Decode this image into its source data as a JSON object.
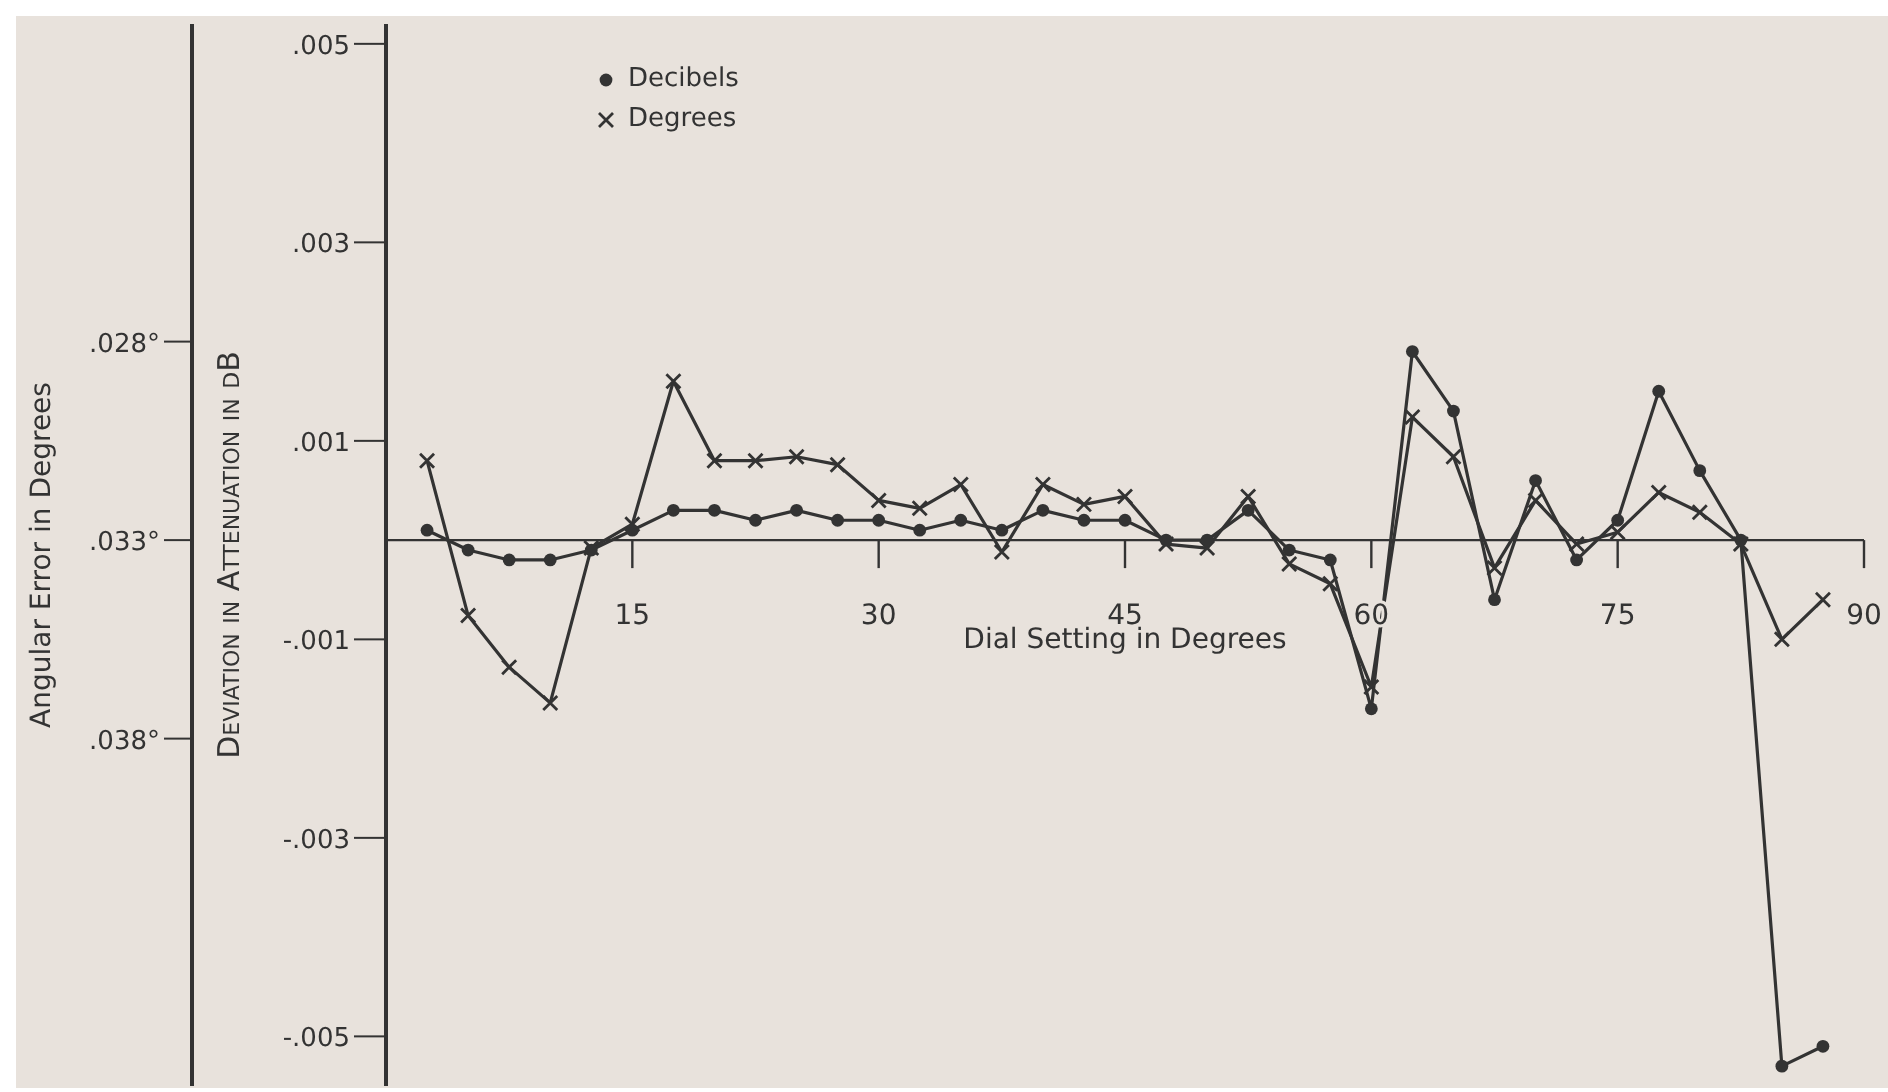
{
  "chart_data": {
    "type": "line",
    "xlabel": "Dial Setting in Degrees",
    "ylabel": "Deviation in Attenuation in dB",
    "y2label": "Angular Error in Degrees",
    "x": [
      2.5,
      5,
      7.5,
      10,
      12.5,
      15,
      17.5,
      20,
      22.5,
      25,
      27.5,
      30,
      32.5,
      35,
      37.5,
      40,
      42.5,
      45,
      47.5,
      50,
      52.5,
      55,
      57.5,
      60,
      62.5,
      65,
      67.5,
      70,
      72.5,
      75,
      77.5,
      80,
      82.5,
      85,
      87.5
    ],
    "series": [
      {
        "name": "Decibels",
        "color": "#333333",
        "marker": "circle",
        "values": [
          0.0001,
          -0.0001,
          -0.0002,
          -0.0002,
          -0.0001,
          0.0001,
          0.0003,
          0.0003,
          0.0002,
          0.0003,
          0.0002,
          0.0002,
          0.0001,
          0.0002,
          0.0001,
          0.0003,
          0.0002,
          0.0002,
          0,
          0,
          0.0003,
          -0.0001,
          -0.0002,
          -0.0017,
          0.0019,
          0.0013,
          -0.0006,
          0.0006,
          -0.0002,
          0.0002,
          0.0015,
          0.0007,
          0,
          -0.0053,
          -0.0051
        ]
      },
      {
        "name": "Degrees",
        "color": "#333333",
        "marker": "cross",
        "axis": "y2",
        "values": [
          0.031,
          0.0349,
          0.0362,
          0.0371,
          0.0332,
          0.0326,
          0.029,
          0.031,
          0.031,
          0.0309,
          0.0311,
          0.032,
          0.0322,
          0.0316,
          0.0333,
          0.0316,
          0.0321,
          0.0319,
          0.0331,
          0.0332,
          0.0319,
          0.0336,
          0.0341,
          0.0367,
          0.0299,
          0.0309,
          0.0337,
          0.032,
          0.0331,
          0.0328,
          0.0318,
          0.0323,
          0.0331,
          0.0355,
          0.0345
        ]
      }
    ],
    "xlim": [
      0,
      90
    ],
    "xticks": [
      15,
      30,
      45,
      60,
      75,
      90
    ],
    "ylim": [
      -0.0055,
      0.0052
    ],
    "yticks": [
      {
        "value": 0.005,
        "label": ".005"
      },
      {
        "value": 0.003,
        "label": ".003"
      },
      {
        "value": 0.001,
        "label": ".001"
      },
      {
        "value": -0.001,
        "label": "-.001"
      },
      {
        "value": -0.003,
        "label": "-.003"
      },
      {
        "value": -0.005,
        "label": "-.005"
      }
    ],
    "y2lim": [
      0.04675,
      0.02
    ],
    "y2ticks": [
      {
        "value": 0.028,
        "label": ".028°"
      },
      {
        "value": 0.033,
        "label": ".033°"
      },
      {
        "value": 0.038,
        "label": ".038°"
      }
    ],
    "legend": "top left",
    "grid": false,
    "line_style": "solid"
  }
}
